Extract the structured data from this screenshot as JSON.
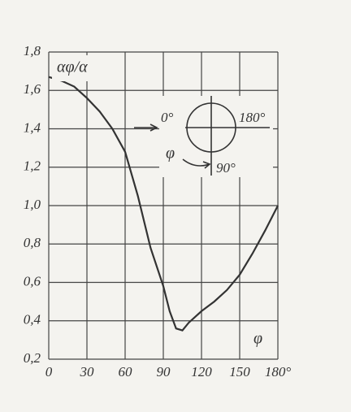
{
  "chart_data": {
    "type": "line",
    "y_label": "αφ/α",
    "x_label": "φ",
    "annotations": [
      "0°",
      "180°",
      "φ",
      "90°"
    ],
    "x": [
      0,
      10,
      20,
      30,
      40,
      50,
      60,
      70,
      80,
      90,
      95,
      100,
      105,
      110,
      120,
      130,
      140,
      150,
      160,
      170,
      180
    ],
    "values": [
      1.67,
      1.65,
      1.62,
      1.56,
      1.49,
      1.4,
      1.28,
      1.05,
      0.78,
      0.58,
      0.45,
      0.36,
      0.35,
      0.39,
      0.45,
      0.5,
      0.56,
      0.64,
      0.75,
      0.87,
      1.0
    ],
    "color": "#333333",
    "xlim": [
      0,
      180
    ],
    "ylim": [
      0.2,
      1.8
    ],
    "xticks": [
      0,
      30,
      60,
      90,
      120,
      150,
      {
        "value": 180,
        "label": "180°"
      }
    ],
    "yticks": [
      {
        "value": 0.2,
        "label": "0,2"
      },
      {
        "value": 0.4,
        "label": "0,4"
      },
      {
        "value": 0.6,
        "label": "0,6"
      },
      {
        "value": 0.8,
        "label": "0,8"
      },
      {
        "value": 1.0,
        "label": "1,0"
      },
      {
        "value": 1.2,
        "label": "1,2"
      },
      {
        "value": 1.4,
        "label": "1,4"
      },
      {
        "value": 1.6,
        "label": "1,6"
      },
      {
        "value": 1.8,
        "label": "1,8"
      }
    ],
    "grid": true
  }
}
